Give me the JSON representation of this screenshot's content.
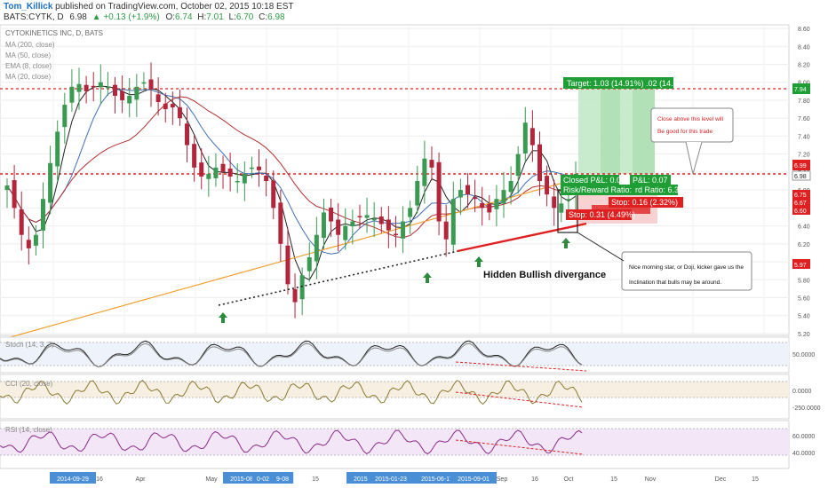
{
  "header": {
    "author": "Tom_Killick",
    "published": "published on TradingView.com, October 02, 2015 10:18 EST",
    "symbol_line": "BATS:CYTK, D",
    "last": "6.98",
    "change": "▲ +0.13 (+1.9%)",
    "o_label": "O:",
    "o": "6.74",
    "h_label": "H:",
    "h": "7.01",
    "l_label": "L:",
    "l": "6.70",
    "c_label": "C:",
    "c": "6.98"
  },
  "legend": {
    "title": "CYTOKINETICS INC, D, BATS",
    "ma200": "MA (200, close)",
    "ma50": "MA (50, close)",
    "ema8": "EMA (8, close)",
    "ma20": "MA (20, close)"
  },
  "annotations": {
    "target": "Target: 1.03 (14.91%) .02 (14.76%)",
    "closed_pl": "Closed P&L: 0.07",
    "pl": "P&L: 0.07",
    "risk_reward": "Risk/Reward Ratio: 3.32",
    "risk_reward2": "rd Ratio: 6.37",
    "stop1": "Stop: 0.16 (2.32%)",
    "stop2": "Stop: 0.31 (4.49%)",
    "close_note_1": "Close above this level will",
    "close_note_2": "Be good for this trade",
    "divergence": "Hidden Bullish divergance",
    "morning_star_1": "Nice morning star, or Doji, kicker gave us the",
    "morning_star_2": "Inclination that bulls may be around."
  },
  "price_tags": {
    "t794": "7.94",
    "t699": "6.99",
    "t698": "6.98",
    "t675": "6.75",
    "t667": "6.67",
    "t660": "6.60",
    "t597": "5.97"
  },
  "colors": {
    "bull": "#3a9a52",
    "bear": "#b2253b",
    "ma_blue": "#3f6fb5",
    "ma_red": "#b03030",
    "ma_orange": "#f0a030",
    "ema_black": "#222222",
    "target_green": "#1e9e35",
    "stop_red": "#e02020",
    "cci_line": "#8a7a30",
    "rsi_line": "#8a2a8a"
  },
  "chart_data": {
    "type": "candlestick",
    "symbol": "BATS:CYTK",
    "interval": "D",
    "price_axis_ticks": [
      "8.60",
      "8.40",
      "8.20",
      "8.00",
      "7.80",
      "7.60",
      "7.40",
      "7.20",
      "7.00",
      "6.80",
      "6.60",
      "6.40",
      "6.20",
      "6.00",
      "5.80",
      "5.60",
      "5.40",
      "5.20"
    ],
    "ylim": [
      5.18,
      8.64
    ],
    "time_axis_labels": [
      "2014-09-29",
      "16",
      "Apr",
      "May",
      "2015-08-24",
      "0-02",
      "9-08",
      "15",
      "2015-10-08",
      "2015-01-23",
      "2015-06-17",
      "2015-09-01",
      "Sep",
      "16",
      "Oct",
      "15",
      "Nov",
      "Dec",
      "15"
    ],
    "horizontal_levels": [
      {
        "name": "target",
        "value": 7.94
      },
      {
        "name": "resistance",
        "value": 6.99
      }
    ],
    "price_series": [
      6.85,
      6.6,
      6.3,
      6.15,
      6.3,
      6.7,
      7.1,
      7.45,
      7.75,
      7.95,
      7.98,
      7.9,
      7.95,
      8.0,
      7.95,
      7.85,
      7.8,
      7.85,
      7.95,
      8.0,
      7.92,
      7.78,
      7.7,
      7.72,
      7.6,
      7.3,
      7.05,
      6.95,
      6.98,
      7.05,
      7.0,
      6.95,
      6.9,
      6.98,
      7.05,
      7.02,
      6.9,
      6.6,
      6.2,
      5.75,
      5.55,
      5.85,
      6.05,
      6.3,
      6.55,
      6.45,
      6.3,
      6.4,
      6.45,
      6.5,
      6.52,
      6.48,
      6.42,
      6.35,
      6.3,
      6.45,
      6.6,
      6.9,
      7.15,
      7.05,
      6.45,
      6.25,
      6.7,
      6.8,
      6.75,
      6.7,
      6.6,
      6.55,
      6.7,
      6.8,
      6.9,
      7.2,
      7.55,
      7.3,
      6.9,
      6.75,
      6.6,
      6.65,
      6.7,
      6.98
    ],
    "stoch": {
      "label": "Stoch (14, 3, 3)",
      "levels": [
        "50.0000"
      ]
    },
    "cci": {
      "label": "CCI (20, close)",
      "levels": [
        "0.0000",
        "-250.0000"
      ]
    },
    "rsi": {
      "label": "RSI (14, close)",
      "levels": [
        "60.0000",
        "40.0000"
      ]
    }
  }
}
